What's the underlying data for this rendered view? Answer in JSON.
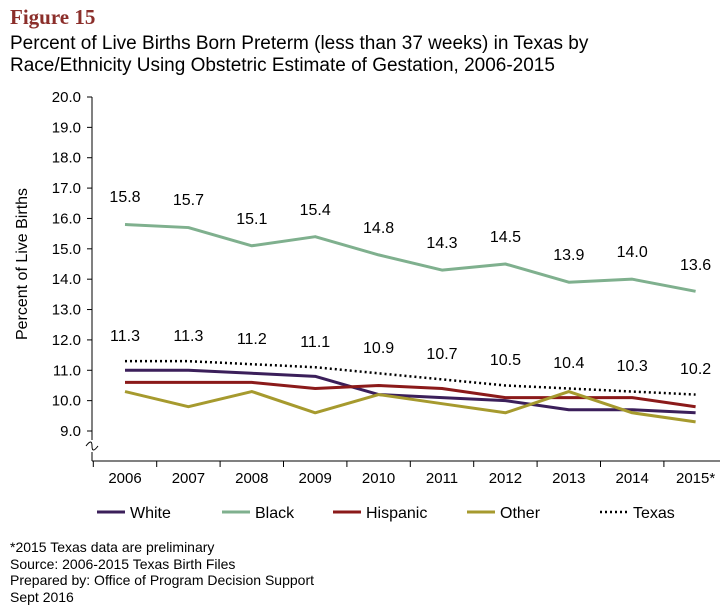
{
  "figure_label": "Figure 15",
  "title_line1": "Percent of Live Births Born Preterm (less than 37 weeks) in Texas by",
  "title_line2": "Race/Ethnicity Using Obstetric Estimate of Gestation, 2006-2015",
  "notes": [
    "*2015 Texas data are preliminary",
    "Source: 2006-2015 Texas Birth Files",
    "Prepared by: Office of Program Decision Support",
    "Sept 2016"
  ],
  "chart_data": {
    "type": "line",
    "ylabel": "Percent of Live Births",
    "xlabel": "",
    "ylim": [
      9.0,
      20.0
    ],
    "y_axis_break": true,
    "grid": false,
    "legend_placement": "bottom",
    "categories": [
      "2006",
      "2007",
      "2008",
      "2009",
      "2010",
      "2011",
      "2012",
      "2013",
      "2014",
      "2015*"
    ],
    "yticks": [
      "20.0",
      "19.0",
      "18.0",
      "17.0",
      "16.0",
      "15.0",
      "14.0",
      "13.0",
      "12.0",
      "11.0",
      "10.0",
      "9.0"
    ],
    "series": [
      {
        "name": "White",
        "color": "#3b1f5a",
        "dash": "solid",
        "labeled": false,
        "values": [
          11.0,
          11.0,
          10.9,
          10.8,
          10.2,
          10.1,
          10.0,
          9.7,
          9.7,
          9.6
        ]
      },
      {
        "name": "Black",
        "color": "#7fb08e",
        "dash": "solid",
        "labeled": true,
        "values": [
          15.8,
          15.7,
          15.1,
          15.4,
          14.8,
          14.3,
          14.5,
          13.9,
          14.0,
          13.6
        ],
        "labels": [
          "15.8",
          "15.7",
          "15.1",
          "15.4",
          "14.8",
          "14.3",
          "14.5",
          "13.9",
          "14.0",
          "13.6"
        ]
      },
      {
        "name": "Hispanic",
        "color": "#8b1a1a",
        "dash": "solid",
        "labeled": false,
        "values": [
          10.6,
          10.6,
          10.6,
          10.4,
          10.5,
          10.4,
          10.1,
          10.1,
          10.1,
          9.8
        ]
      },
      {
        "name": "Other",
        "color": "#a69a2e",
        "dash": "solid",
        "labeled": false,
        "values": [
          10.3,
          9.8,
          10.3,
          9.6,
          10.2,
          9.9,
          9.6,
          10.3,
          9.6,
          9.3
        ]
      },
      {
        "name": "Texas",
        "color": "#000000",
        "dash": "dotted",
        "labeled": true,
        "values": [
          11.3,
          11.3,
          11.2,
          11.1,
          10.9,
          10.7,
          10.5,
          10.4,
          10.3,
          10.2
        ],
        "labels": [
          "11.3",
          "11.3",
          "11.2",
          "11.1",
          "10.9",
          "10.7",
          "10.5",
          "10.4",
          "10.3",
          "10.2"
        ]
      }
    ]
  }
}
